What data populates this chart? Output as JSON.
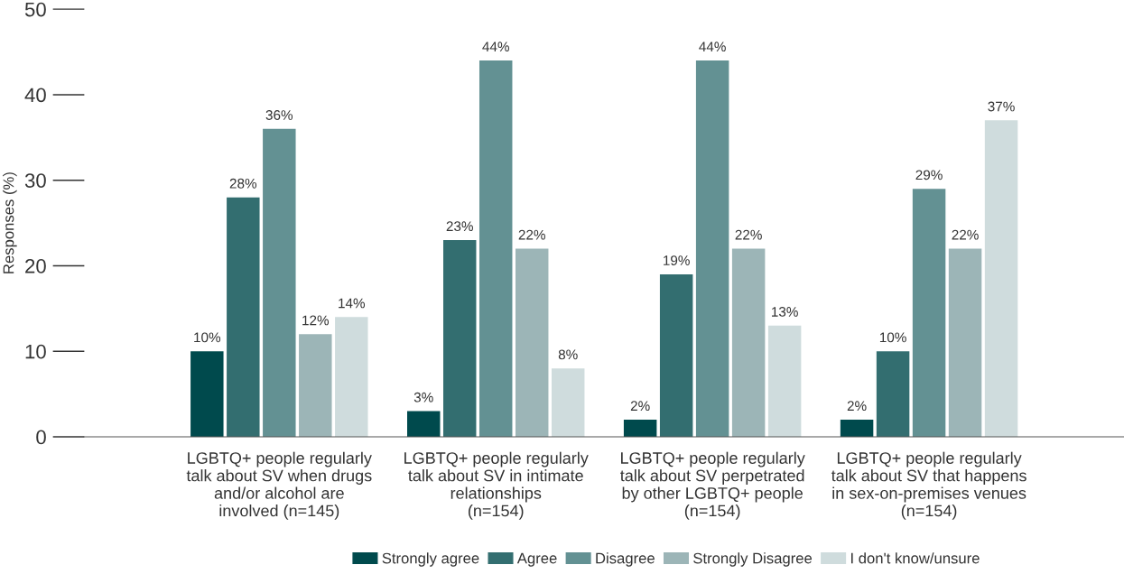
{
  "chart_data": {
    "type": "bar",
    "ylabel": "Responses (%)",
    "categories": [
      "LGBTQ+ people regularly\ntalk about SV when drugs\nand/or alcohol are\ninvolved (n=145)",
      "LGBTQ+ people regularly\ntalk about SV in intimate\nrelationships\n(n=154)",
      "LGBTQ+ people regularly\ntalk about SV perpetrated\nby other LGBTQ+ people\n(n=154)",
      "LGBTQ+ people regularly\ntalk about SV that happens\nin sex-on-premises venues\n(n=154)"
    ],
    "series": [
      {
        "name": "Strongly agree",
        "color": "#004a4d",
        "values": [
          10,
          3,
          2,
          2
        ],
        "value_labels": [
          "10%",
          "3%",
          "2%",
          "2%"
        ]
      },
      {
        "name": "Agree",
        "color": "#336e70",
        "values": [
          28,
          23,
          19,
          10
        ],
        "value_labels": [
          "28%",
          "23%",
          "19%",
          "10%"
        ]
      },
      {
        "name": "Disagree",
        "color": "#639193",
        "values": [
          36,
          44,
          44,
          29
        ],
        "value_labels": [
          "36%",
          "44%",
          "44%",
          "29%"
        ]
      },
      {
        "name": "Strongly Disagree",
        "color": "#9cb5b7",
        "values": [
          12,
          22,
          22,
          22
        ],
        "value_labels": [
          "12%",
          "22%",
          "22%",
          "22%"
        ]
      },
      {
        "name": "I don't know/unsure",
        "color": "#cfdcdd",
        "values": [
          14,
          8,
          13,
          37
        ],
        "value_labels": [
          "14%",
          "8%",
          "13%",
          "37%"
        ]
      }
    ],
    "ylim": [
      0,
      50
    ],
    "yticks": [
      0,
      10,
      20,
      30,
      40,
      50
    ],
    "grid": false,
    "legend": "bottom"
  }
}
